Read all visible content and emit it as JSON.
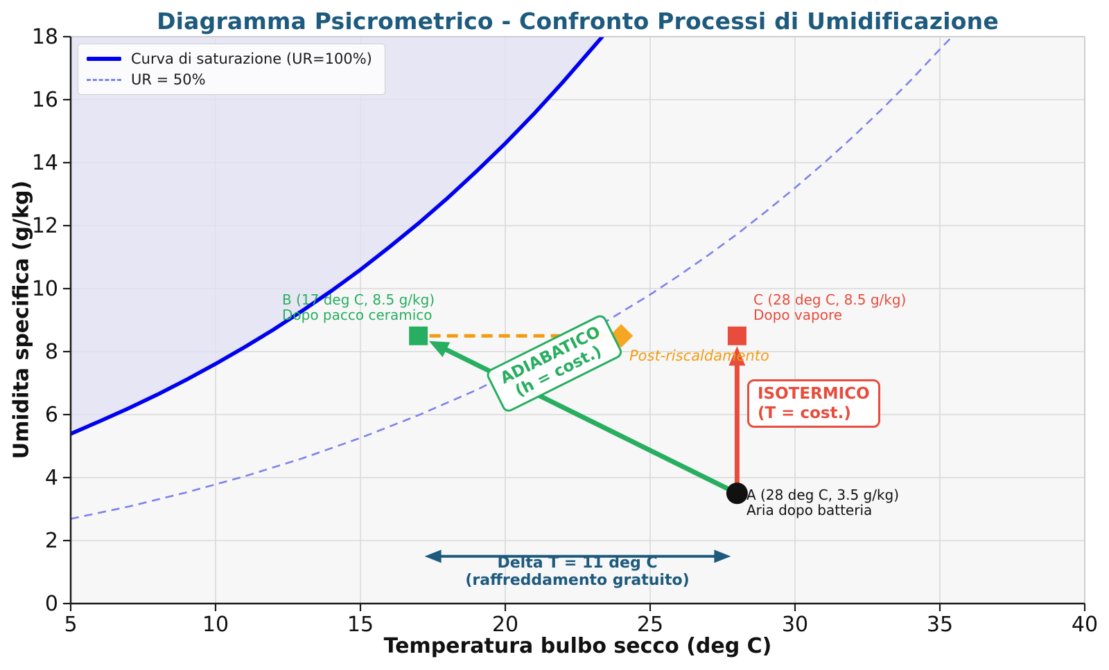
{
  "chart_data": {
    "type": "line",
    "title": "Diagramma Psicrometrico - Confronto Processi di Umidificazione",
    "xlabel": "Temperatura bulbo secco (deg C)",
    "ylabel": "Umidita specifica (g/kg)",
    "xlim": [
      5,
      40
    ],
    "ylim": [
      0,
      18
    ],
    "xticks": [
      5,
      10,
      15,
      20,
      25,
      30,
      35,
      40
    ],
    "yticks": [
      0,
      2,
      4,
      6,
      8,
      10,
      12,
      14,
      16,
      18
    ],
    "grid": true,
    "legend_position": "upper left",
    "series": [
      {
        "name": "Curva di saturazione (UR=100%)",
        "color": "#0000ee",
        "style": "solid",
        "width": 5.5,
        "fill_above_color": "#e2e2f4",
        "points": [
          [
            5,
            5.39
          ],
          [
            6,
            5.79
          ],
          [
            7,
            6.2
          ],
          [
            8,
            6.64
          ],
          [
            9,
            7.11
          ],
          [
            10,
            7.61
          ],
          [
            11,
            8.14
          ],
          [
            12,
            8.7
          ],
          [
            13,
            9.3
          ],
          [
            14,
            9.93
          ],
          [
            15,
            10.6
          ],
          [
            16,
            11.32
          ],
          [
            17,
            12.07
          ],
          [
            18,
            12.87
          ],
          [
            19,
            13.72
          ],
          [
            20,
            14.61
          ],
          [
            21,
            15.56
          ],
          [
            22,
            16.57
          ],
          [
            23,
            17.63
          ],
          [
            23.35,
            18.0
          ]
        ]
      },
      {
        "name": "UR = 50%",
        "color": "#7d82ea",
        "style": "dashed",
        "width": 2.6,
        "points": [
          [
            5,
            2.69
          ],
          [
            7,
            3.08
          ],
          [
            9,
            3.53
          ],
          [
            11,
            4.04
          ],
          [
            13,
            4.61
          ],
          [
            15,
            5.26
          ],
          [
            17,
            5.98
          ],
          [
            19,
            6.78
          ],
          [
            21,
            7.69
          ],
          [
            23,
            8.69
          ],
          [
            25,
            9.81
          ],
          [
            26,
            10.42
          ],
          [
            27,
            11.06
          ],
          [
            28,
            11.73
          ],
          [
            29,
            12.45
          ],
          [
            30,
            13.2
          ],
          [
            31,
            13.99
          ],
          [
            32,
            14.82
          ],
          [
            33,
            15.7
          ],
          [
            34,
            16.62
          ],
          [
            35,
            17.6
          ],
          [
            35.42,
            18.0
          ]
        ]
      }
    ],
    "processes": [
      {
        "name": "adiabatico",
        "from": [
          28,
          3.5
        ],
        "to": [
          17,
          8.5
        ],
        "color": "#27ae60",
        "style": "solid",
        "width": 7,
        "standoff": 17
      },
      {
        "name": "isotermico",
        "from": [
          28,
          3.5
        ],
        "to": [
          28,
          8.5
        ],
        "color": "#e74c3c",
        "style": "solid",
        "width": 7,
        "standoff": 15
      },
      {
        "name": "post-riscaldamento",
        "from": [
          17,
          8.5
        ],
        "to": [
          24,
          8.5
        ],
        "color": "#f39c12",
        "style": "dashed",
        "width": 5,
        "standoff": 14,
        "start_offset": 16
      }
    ],
    "points": [
      {
        "id": "A",
        "t": 28,
        "w": 3.5,
        "marker": "circle",
        "color": "#111111",
        "label": "A (28 deg C, 3.5 g/kg)",
        "sublabel": "Aria dopo batteria"
      },
      {
        "id": "B",
        "t": 17,
        "w": 8.5,
        "marker": "square",
        "color": "#27ae60",
        "label": "B (17 deg C, 8.5 g/kg)",
        "sublabel": "Dopo pacco ceramico"
      },
      {
        "id": "C",
        "t": 28,
        "w": 8.5,
        "marker": "square",
        "color": "#e74c3c",
        "label": "C (28 deg C, 8.5 g/kg)",
        "sublabel": "Dopo vapore"
      },
      {
        "id": "reheat-end",
        "t": 24,
        "w": 8.5,
        "marker": "diamond",
        "color": "#f5a623",
        "label": "",
        "sublabel": ""
      }
    ],
    "annotations": {
      "adiabatic_box": {
        "line1": "ADIABATICO",
        "line2": "(h = cost.)",
        "color": "#27ae60"
      },
      "isothermal_box": {
        "line1": "ISOTERMICO",
        "line2": "(T = cost.)",
        "color": "#e74c3c"
      },
      "post_reheat": {
        "text": "Post-riscaldamento",
        "color": "#f39c12"
      },
      "delta_t": {
        "line1": "Delta T = 11 deg C",
        "line2": "(raffreddamento gratuito)",
        "from_t": 17,
        "to_t": 28,
        "at_w": 1.5,
        "color": "#1d5a7d"
      }
    },
    "colors": {
      "saturation": "#0000ee",
      "ur50": "#7d82ea",
      "adiabatic": "#27ae60",
      "isothermal": "#e74c3c",
      "reheat": "#f39c12",
      "accent_dark": "#1d5a7d",
      "plot_bg": "#f7f7f7",
      "grid": "#dcdcdc",
      "fill_above_saturation": "#e2e2f4"
    }
  }
}
